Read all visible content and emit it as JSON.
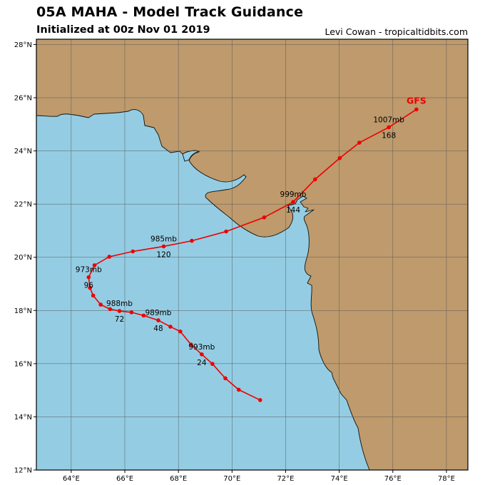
{
  "title": "05A MAHA - Model Track Guidance",
  "subtitle": "Initialized at 00z Nov 01 2019",
  "credit": "Levi Cowan - tropicaltidbits.com",
  "colors": {
    "ocean": "#94CDE3",
    "land": "#BE9A6C",
    "track": "#EE0000",
    "grid": "#5a5a5a"
  },
  "map": {
    "lon_range": [
      62.7,
      78.8
    ],
    "lat_range": [
      12,
      28.2
    ],
    "lon_ticks": [
      "64°E",
      "66°E",
      "68°E",
      "70°E",
      "72°E",
      "74°E",
      "76°E",
      "78°E"
    ],
    "lat_ticks": [
      "12°N",
      "14°N",
      "16°N",
      "18°N",
      "20°N",
      "22°N",
      "24°N",
      "26°N",
      "28°N"
    ]
  },
  "model": {
    "name": "GFS",
    "track": [
      [
        71.05,
        14.63
      ],
      [
        70.25,
        15.02
      ],
      [
        69.75,
        15.45
      ],
      [
        69.27,
        15.99
      ],
      [
        68.87,
        16.35
      ],
      [
        68.47,
        16.72
      ],
      [
        68.07,
        17.21
      ],
      [
        67.7,
        17.39
      ],
      [
        67.25,
        17.63
      ],
      [
        66.7,
        17.81
      ],
      [
        66.25,
        17.93
      ],
      [
        65.8,
        17.98
      ],
      [
        65.45,
        18.05
      ],
      [
        65.1,
        18.22
      ],
      [
        64.82,
        18.56
      ],
      [
        64.7,
        18.85
      ],
      [
        64.65,
        19.25
      ],
      [
        64.87,
        19.7
      ],
      [
        65.42,
        20.02
      ],
      [
        66.3,
        20.22
      ],
      [
        67.45,
        20.41
      ],
      [
        68.5,
        20.62
      ],
      [
        69.78,
        20.97
      ],
      [
        71.2,
        21.5
      ],
      [
        72.28,
        22.08
      ],
      [
        73.1,
        22.93
      ],
      [
        74.02,
        23.73
      ],
      [
        74.75,
        24.31
      ],
      [
        75.85,
        24.89
      ],
      [
        76.88,
        25.56
      ]
    ],
    "labels": [
      {
        "pressure": "993mb",
        "hour": "24",
        "lon": 68.87,
        "lat": 16.35
      },
      {
        "pressure": "989mb",
        "hour": "48",
        "lon": 67.25,
        "lat": 17.63
      },
      {
        "pressure": "988mb",
        "hour": "72",
        "lon": 65.8,
        "lat": 17.98
      },
      {
        "pressure": "973mb",
        "hour": "96",
        "lon": 64.65,
        "lat": 19.25
      },
      {
        "pressure": "985mb",
        "hour": "120",
        "lon": 67.45,
        "lat": 20.41
      },
      {
        "pressure": "999mb",
        "hour": "144",
        "lon": 72.28,
        "lat": 22.08
      },
      {
        "pressure": "1007mb",
        "hour": "168",
        "lon": 75.85,
        "lat": 24.89
      }
    ]
  }
}
